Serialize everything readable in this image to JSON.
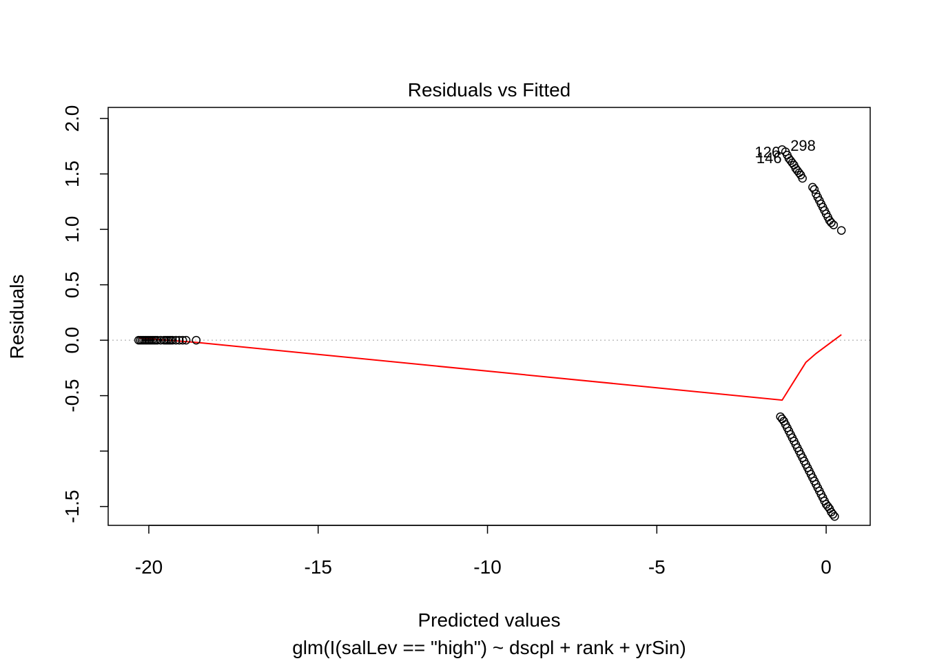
{
  "chart_data": {
    "type": "scatter",
    "title": "Residuals vs Fitted",
    "xlabel": "Predicted values",
    "subtitle": "glm(I(salLev == \"high\") ~ dscpl + rank + yrSin)",
    "ylabel": "Residuals",
    "xlim": [
      -21.2,
      1.3
    ],
    "ylim": [
      -1.67,
      2.1
    ],
    "x_ticks": [
      -20,
      -15,
      -10,
      -5,
      0
    ],
    "x_tick_labels": [
      "-20",
      "-15",
      "-10",
      "-5",
      "0"
    ],
    "y_ticks": [
      -1.5,
      -1.0,
      -0.5,
      0.0,
      0.5,
      1.0,
      1.5,
      2.0
    ],
    "y_tick_labels": [
      "-1.5",
      "",
      "-0.5",
      "0.0",
      "0.5",
      "1.0",
      "1.5",
      "2.0"
    ],
    "grid": false,
    "reference_line": {
      "y": 0,
      "style": "dotted",
      "color": "#bebebe"
    },
    "colors": {
      "points": "#000000",
      "smoother": "#ff0000",
      "reference": "#bebebe"
    },
    "series": [
      {
        "points": [
          [
            -20.3,
            0.0
          ],
          [
            -20.25,
            0.0
          ],
          [
            -20.2,
            0.0
          ],
          [
            -20.15,
            0.0
          ],
          [
            -20.1,
            0.0
          ],
          [
            -20.05,
            0.0
          ],
          [
            -20.0,
            0.0
          ],
          [
            -19.95,
            0.0
          ],
          [
            -19.9,
            0.0
          ],
          [
            -19.85,
            0.0
          ],
          [
            -19.8,
            0.0
          ],
          [
            -19.75,
            0.0
          ],
          [
            -19.65,
            0.0
          ],
          [
            -19.55,
            0.0
          ],
          [
            -19.5,
            0.0
          ],
          [
            -19.45,
            0.0
          ],
          [
            -19.4,
            0.0
          ],
          [
            -19.35,
            0.0
          ],
          [
            -19.3,
            0.0
          ],
          [
            -19.2,
            0.0
          ],
          [
            -19.1,
            0.0
          ],
          [
            -19.0,
            0.0
          ],
          [
            -18.9,
            0.0
          ],
          [
            -18.6,
            0.0
          ],
          [
            -1.3,
            1.72
          ],
          [
            -1.2,
            1.7
          ],
          [
            -1.15,
            1.67
          ],
          [
            -1.1,
            1.64
          ],
          [
            -1.05,
            1.62
          ],
          [
            -1.0,
            1.6
          ],
          [
            -0.95,
            1.58
          ],
          [
            -0.9,
            1.55
          ],
          [
            -0.85,
            1.53
          ],
          [
            -0.8,
            1.51
          ],
          [
            -0.75,
            1.49
          ],
          [
            -0.7,
            1.46
          ],
          [
            -0.4,
            1.38
          ],
          [
            -0.35,
            1.36
          ],
          [
            -0.3,
            1.32
          ],
          [
            -0.25,
            1.29
          ],
          [
            -0.2,
            1.26
          ],
          [
            -0.15,
            1.23
          ],
          [
            -0.1,
            1.2
          ],
          [
            -0.05,
            1.17
          ],
          [
            0.0,
            1.14
          ],
          [
            0.05,
            1.11
          ],
          [
            0.1,
            1.08
          ],
          [
            0.15,
            1.06
          ],
          [
            0.22,
            1.04
          ],
          [
            0.45,
            0.99
          ],
          [
            -1.35,
            -0.69
          ],
          [
            -1.3,
            -0.71
          ],
          [
            -1.25,
            -0.73
          ],
          [
            -1.2,
            -0.76
          ],
          [
            -1.15,
            -0.79
          ],
          [
            -1.1,
            -0.82
          ],
          [
            -1.05,
            -0.85
          ],
          [
            -1.0,
            -0.88
          ],
          [
            -0.95,
            -0.91
          ],
          [
            -0.9,
            -0.94
          ],
          [
            -0.85,
            -0.97
          ],
          [
            -0.8,
            -1.0
          ],
          [
            -0.75,
            -1.03
          ],
          [
            -0.7,
            -1.06
          ],
          [
            -0.65,
            -1.09
          ],
          [
            -0.6,
            -1.12
          ],
          [
            -0.55,
            -1.15
          ],
          [
            -0.5,
            -1.18
          ],
          [
            -0.45,
            -1.21
          ],
          [
            -0.4,
            -1.24
          ],
          [
            -0.35,
            -1.27
          ],
          [
            -0.3,
            -1.3
          ],
          [
            -0.25,
            -1.33
          ],
          [
            -0.2,
            -1.36
          ],
          [
            -0.15,
            -1.39
          ],
          [
            -0.1,
            -1.42
          ],
          [
            -0.05,
            -1.45
          ],
          [
            0.0,
            -1.48
          ],
          [
            0.05,
            -1.5
          ],
          [
            0.1,
            -1.52
          ],
          [
            0.15,
            -1.55
          ],
          [
            0.2,
            -1.57
          ],
          [
            0.25,
            -1.59
          ]
        ]
      }
    ],
    "smoother": [
      [
        -20.3,
        0.02
      ],
      [
        -18.6,
        -0.02
      ],
      [
        -1.3,
        -0.54
      ],
      [
        -0.6,
        -0.2
      ],
      [
        -0.3,
        -0.12
      ],
      [
        0.45,
        0.05
      ]
    ],
    "point_labels": [
      {
        "text": "298",
        "x": -1.3,
        "y": 1.72
      },
      {
        "text": "126",
        "x": -1.2,
        "y": 1.7
      },
      {
        "text": "146",
        "x": -1.15,
        "y": 1.67
      }
    ]
  }
}
